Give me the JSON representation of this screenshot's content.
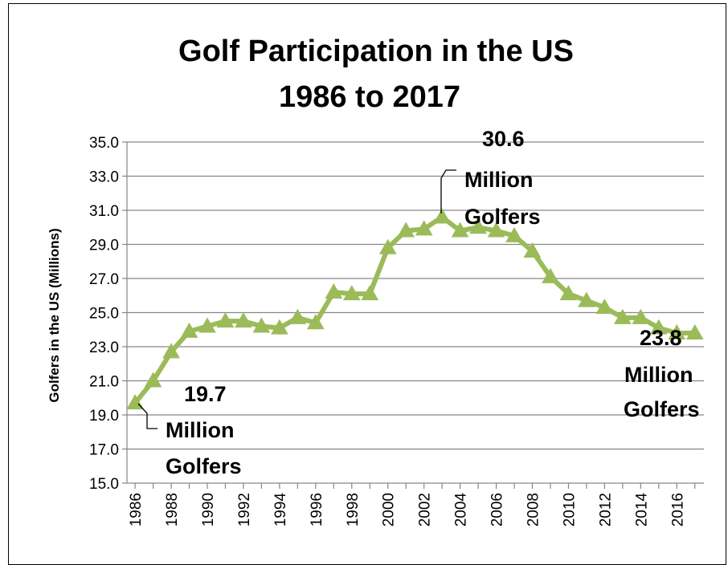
{
  "chart_data": {
    "type": "line",
    "title": [
      "Golf Participation in the US",
      "1986 to 2017"
    ],
    "ylabel": "Golfers in the US (Millions)",
    "xlabel": "",
    "ylim": [
      15.0,
      35.0
    ],
    "yticks": [
      "15.0",
      "17.0",
      "19.0",
      "21.0",
      "23.0",
      "25.0",
      "27.0",
      "29.0",
      "31.0",
      "33.0",
      "35.0"
    ],
    "xticks": [
      "1986",
      "1988",
      "1990",
      "1992",
      "1994",
      "1996",
      "1998",
      "2000",
      "2002",
      "2004",
      "2006",
      "2008",
      "2010",
      "2012",
      "2014",
      "2016"
    ],
    "grid": "horizontal",
    "series_color": "#9BBB59",
    "marker": "triangle",
    "x": [
      1986,
      1987,
      1988,
      1989,
      1990,
      1991,
      1992,
      1993,
      1994,
      1995,
      1996,
      1997,
      1998,
      1999,
      2000,
      2001,
      2002,
      2003,
      2004,
      2005,
      2006,
      2007,
      2008,
      2009,
      2010,
      2011,
      2012,
      2013,
      2014,
      2015,
      2016,
      2017
    ],
    "values": [
      19.7,
      21.0,
      22.7,
      23.9,
      24.2,
      24.5,
      24.5,
      24.2,
      24.1,
      24.7,
      24.4,
      26.2,
      26.1,
      26.1,
      28.8,
      29.8,
      29.9,
      30.6,
      29.8,
      30.0,
      29.8,
      29.5,
      28.6,
      27.1,
      26.1,
      25.7,
      25.3,
      24.7,
      24.7,
      24.1,
      23.8,
      23.8
    ],
    "annotations": [
      {
        "lines": [
          "19.7",
          "Million",
          "Golfers"
        ]
      },
      {
        "lines": [
          "30.6",
          "Million",
          "Golfers"
        ]
      },
      {
        "lines": [
          "23.8",
          "Million",
          "Golfers"
        ]
      }
    ]
  }
}
